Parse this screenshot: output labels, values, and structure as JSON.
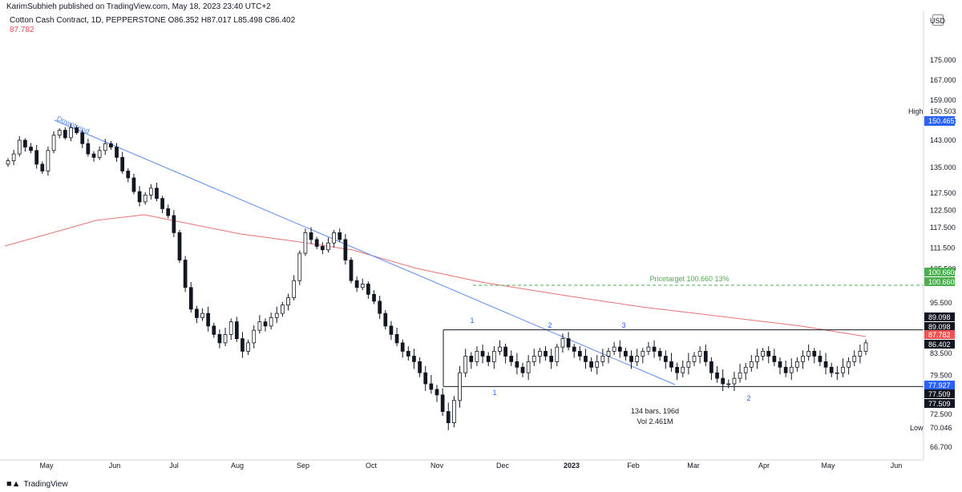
{
  "header": {
    "publisher": "KarimSubhieh published on TradingView.com, May 18, 2023 23:40 UTC+2",
    "symbol_line": "Cotton Cash Contract, 1D, PEPPERSTONE  O86.352  H87.017  L85.498  C86.402",
    "ma_value": "87.782"
  },
  "footer": {
    "brand": "TradingView"
  },
  "chart_data": {
    "type": "candlestick",
    "currency_label": "USD",
    "y_ticks": [
      "175.000",
      "167.000",
      "159.000",
      "150.503",
      "143.000",
      "135.000",
      "127.500",
      "122.500",
      "117.500",
      "111.500",
      "105.500",
      "95.500",
      "83.500",
      "79.500",
      "72.500",
      "66.700"
    ],
    "x_ticks": [
      "May",
      "Jun",
      "Jul",
      "Aug",
      "Sep",
      "Oct",
      "Nov",
      "Dec",
      "2023",
      "Feb",
      "Mar",
      "Apr",
      "May",
      "Jun"
    ],
    "closes": [
      137,
      139,
      143,
      141,
      140,
      136,
      134,
      140,
      145,
      147,
      144,
      148,
      146,
      142,
      139,
      138,
      140,
      142,
      141,
      138,
      134,
      132,
      128,
      125,
      127,
      129,
      126,
      123,
      121,
      116,
      108,
      100,
      94,
      92,
      93,
      90,
      88,
      86,
      88,
      91,
      87,
      84,
      86,
      89,
      91,
      90,
      92,
      93,
      95,
      97,
      102,
      110,
      116,
      114,
      112,
      111,
      113,
      116,
      114,
      108,
      102,
      100,
      101,
      98,
      96,
      93,
      90,
      88,
      86,
      84,
      83,
      82,
      80,
      78,
      77,
      76,
      73,
      71,
      75,
      80,
      83,
      82,
      84,
      83,
      82,
      84,
      85,
      83,
      82,
      81,
      80,
      82,
      83,
      84,
      83,
      82,
      85,
      87,
      85,
      84,
      83,
      82,
      81,
      82,
      83,
      84,
      85,
      84,
      83,
      82,
      83,
      84,
      85,
      84,
      83,
      82,
      81,
      80,
      81,
      82,
      83,
      84,
      82,
      80,
      79,
      78,
      78,
      79,
      80,
      81,
      82,
      83,
      84,
      83,
      82,
      81,
      80,
      81,
      82,
      83,
      84,
      83,
      82,
      81,
      80,
      80,
      81,
      82,
      83,
      84,
      86
    ],
    "moving_average": {
      "label": "87.782"
    },
    "drawings": [
      {
        "kind": "trendline",
        "label": "Downtrend"
      },
      {
        "kind": "horizontal",
        "level": 89.098,
        "label": ""
      },
      {
        "kind": "horizontal",
        "level": 77.509,
        "label": ""
      },
      {
        "kind": "target",
        "level": 100.66,
        "label": "Pricetarget 100.660 13%"
      }
    ],
    "wave_labels": [
      "1",
      "2",
      "3",
      "1",
      "2"
    ],
    "range_info": [
      "134 bars, 196d",
      "Vol 2.461M"
    ],
    "high": {
      "label": "High",
      "value": "150.503",
      "tag": "150.465"
    },
    "low": {
      "label": "Low",
      "value": "70.046"
    },
    "price_tags": [
      {
        "value": "100.660",
        "color": "#4caf50"
      },
      {
        "value": "100.660",
        "color": "#4caf50"
      },
      {
        "value": "89.098",
        "color": "#131722"
      },
      {
        "value": "89.098",
        "color": "#131722"
      },
      {
        "value": "87.782",
        "color": "#ef5350"
      },
      {
        "value": "86.402",
        "color": "#131722"
      },
      {
        "value": "77.927",
        "color": "#2962ff"
      },
      {
        "value": "77.509",
        "color": "#131722"
      },
      {
        "value": "77.509",
        "color": "#131722"
      }
    ],
    "colors": {
      "ma": "#e57373",
      "trendline": "#5b8def",
      "target": "#4caf50",
      "wave": "#2962ff"
    }
  }
}
